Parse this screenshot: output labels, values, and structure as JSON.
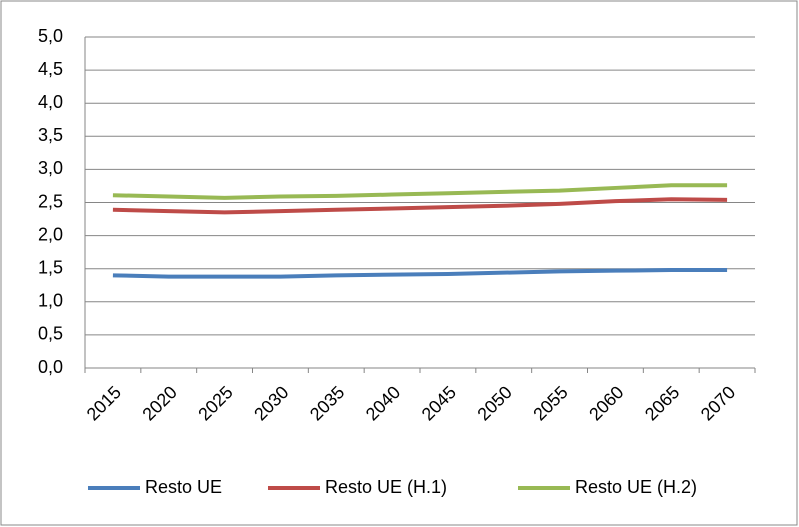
{
  "chart_data": {
    "type": "line",
    "categories": [
      "2015",
      "2020",
      "2025",
      "2030",
      "2035",
      "2040",
      "2045",
      "2050",
      "2055",
      "2060",
      "2065",
      "2070"
    ],
    "series": [
      {
        "name": "Resto UE",
        "color": "#4a7ebb",
        "values": [
          1.4,
          1.38,
          1.38,
          1.38,
          1.4,
          1.41,
          1.42,
          1.44,
          1.46,
          1.47,
          1.48,
          1.48
        ]
      },
      {
        "name": "Resto UE (H.1)",
        "color": "#be4b48",
        "values": [
          2.39,
          2.37,
          2.35,
          2.37,
          2.39,
          2.41,
          2.43,
          2.45,
          2.48,
          2.52,
          2.55,
          2.54
        ]
      },
      {
        "name": "Resto UE (H.2)",
        "color": "#98b954",
        "values": [
          2.61,
          2.59,
          2.57,
          2.59,
          2.6,
          2.62,
          2.64,
          2.66,
          2.68,
          2.72,
          2.76,
          2.76
        ]
      }
    ],
    "ylim": [
      0,
      5
    ],
    "yticks": [
      {
        "value": 0,
        "label": "0,0"
      },
      {
        "value": 0.5,
        "label": "0,5"
      },
      {
        "value": 1,
        "label": "1,0"
      },
      {
        "value": 1.5,
        "label": "1,5"
      },
      {
        "value": 2,
        "label": "2,0"
      },
      {
        "value": 2.5,
        "label": "2,5"
      },
      {
        "value": 3,
        "label": "3,0"
      },
      {
        "value": 3.5,
        "label": "3,5"
      },
      {
        "value": 4,
        "label": "4,0"
      },
      {
        "value": 4.5,
        "label": "4,5"
      },
      {
        "value": 5,
        "label": "5,0"
      }
    ],
    "grid": true,
    "legend": "bottom"
  }
}
